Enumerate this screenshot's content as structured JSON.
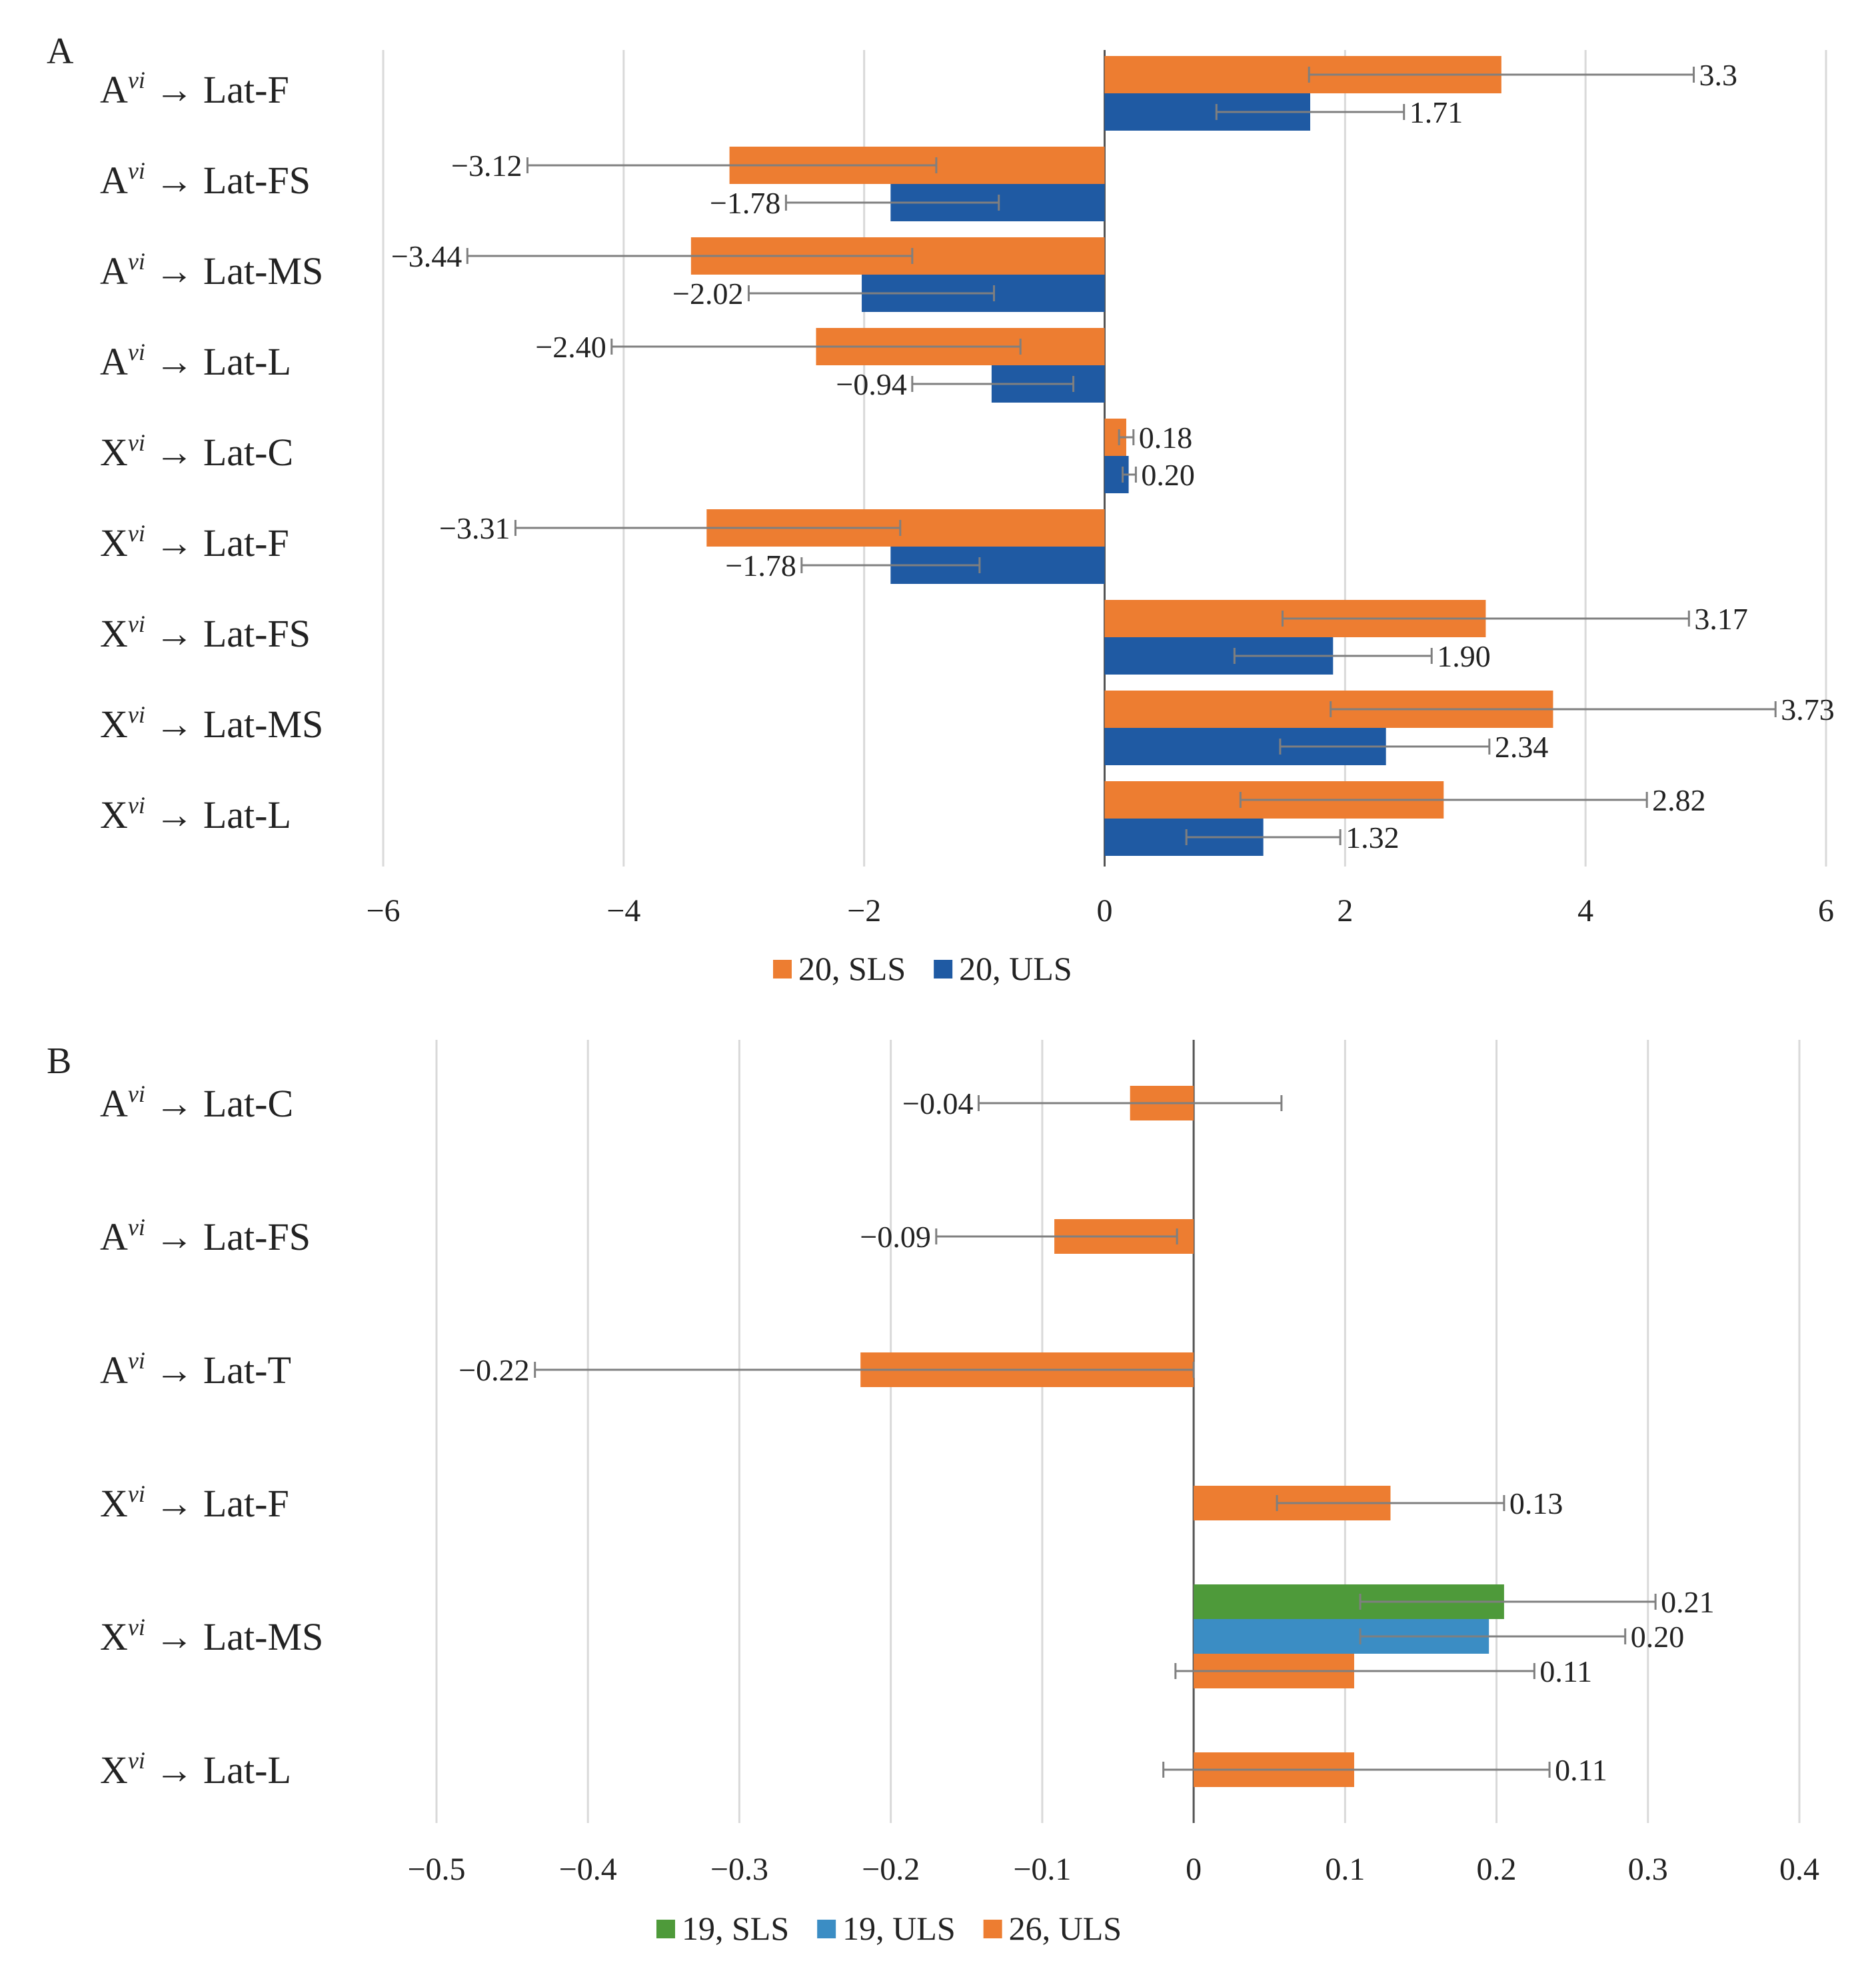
{
  "colors": {
    "sls20": "#ED7D31",
    "uls20": "#1F5AA3",
    "sls19": "#4E9A3A",
    "uls19": "#3B8DC4",
    "uls26": "#ED7D31",
    "grid": "#D9D9D9",
    "axis": "#555555",
    "errorbar": "#7F7F7F"
  },
  "chart_data": [
    {
      "panel": "A",
      "type": "bar",
      "orientation": "horizontal",
      "categories": [
        {
          "base": "A",
          "sup": "vi",
          "arrow": "→",
          "target": "Lat-F"
        },
        {
          "base": "A",
          "sup": "vi",
          "arrow": "→",
          "target": "Lat-FS"
        },
        {
          "base": "A",
          "sup": "vi",
          "arrow": "→",
          "target": "Lat-MS"
        },
        {
          "base": "A",
          "sup": "vi",
          "arrow": "→",
          "target": "Lat-L"
        },
        {
          "base": "X",
          "sup": "vi",
          "arrow": "→",
          "target": "Lat-C"
        },
        {
          "base": "X",
          "sup": "vi",
          "arrow": "→",
          "target": "Lat-F"
        },
        {
          "base": "X",
          "sup": "vi",
          "arrow": "→",
          "target": "Lat-FS"
        },
        {
          "base": "X",
          "sup": "vi",
          "arrow": "→",
          "target": "Lat-MS"
        },
        {
          "base": "X",
          "sup": "vi",
          "arrow": "→",
          "target": "Lat-L"
        }
      ],
      "series": [
        {
          "name": "20, SLS",
          "color_key": "sls20",
          "values": [
            3.3,
            -3.12,
            -3.44,
            -2.4,
            0.18,
            -3.31,
            3.17,
            3.73,
            2.82
          ],
          "labels": [
            "3.3",
            "−3.12",
            "−3.44",
            "−2.40",
            "0.18",
            "−3.31",
            "3.17",
            "3.73",
            "2.82"
          ],
          "err_low": [
            1.7,
            -1.4,
            -1.6,
            -0.7,
            0.12,
            -1.7,
            1.48,
            1.88,
            1.13
          ],
          "err_high": [
            4.9,
            -4.8,
            -5.3,
            -4.1,
            0.24,
            -4.9,
            4.86,
            5.58,
            4.51
          ]
        },
        {
          "name": "20, ULS",
          "color_key": "uls20",
          "values": [
            1.71,
            -1.78,
            -2.02,
            -0.94,
            0.2,
            -1.78,
            1.9,
            2.34,
            1.32
          ],
          "labels": [
            "1.71",
            "−1.78",
            "−2.02",
            "−0.94",
            "0.20",
            "−1.78",
            "1.90",
            "2.34",
            "1.32"
          ],
          "err_low": [
            0.93,
            -0.88,
            -0.92,
            -0.26,
            0.15,
            -1.04,
            1.08,
            1.46,
            0.68
          ],
          "err_high": [
            2.49,
            -2.65,
            -2.96,
            -1.6,
            0.26,
            -2.52,
            2.72,
            3.2,
            1.96
          ]
        }
      ],
      "xlim": [
        -6,
        6
      ],
      "xticks": [
        -6,
        -4,
        -2,
        0,
        2,
        4,
        6
      ],
      "xtick_labels": [
        "−6",
        "−4",
        "−2",
        "0",
        "2",
        "4",
        "6"
      ],
      "legend": [
        "20, SLS",
        "20, ULS"
      ],
      "legend_position": "bottom",
      "grid": true
    },
    {
      "panel": "B",
      "type": "bar",
      "orientation": "horizontal",
      "categories": [
        {
          "base": "A",
          "sup": "vi",
          "arrow": "→",
          "target": "Lat-C"
        },
        {
          "base": "A",
          "sup": "vi",
          "arrow": "→",
          "target": "Lat-FS"
        },
        {
          "base": "A",
          "sup": "vi",
          "arrow": "→",
          "target": "Lat-T"
        },
        {
          "base": "X",
          "sup": "vi",
          "arrow": "→",
          "target": "Lat-F"
        },
        {
          "base": "X",
          "sup": "vi",
          "arrow": "→",
          "target": "Lat-MS"
        },
        {
          "base": "X",
          "sup": "vi",
          "arrow": "→",
          "target": "Lat-L"
        }
      ],
      "series": [
        {
          "name": "19, SLS",
          "color_key": "sls19",
          "values": [
            null,
            null,
            null,
            null,
            0.205,
            null
          ],
          "labels": [
            null,
            null,
            null,
            null,
            "0.21",
            null
          ],
          "err_low": [
            null,
            null,
            null,
            null,
            0.11,
            null
          ],
          "err_high": [
            null,
            null,
            null,
            null,
            0.305,
            null
          ]
        },
        {
          "name": "19, ULS",
          "color_key": "uls19",
          "values": [
            null,
            null,
            null,
            null,
            0.195,
            null
          ],
          "labels": [
            null,
            null,
            null,
            null,
            "0.20",
            null
          ],
          "err_low": [
            null,
            null,
            null,
            null,
            0.11,
            null
          ],
          "err_high": [
            null,
            null,
            null,
            null,
            0.285,
            null
          ]
        },
        {
          "name": "26, ULS",
          "color_key": "uls26",
          "values": [
            -0.042,
            -0.092,
            -0.22,
            0.13,
            0.106,
            0.106
          ],
          "labels": [
            "−0.04",
            "−0.09",
            "−0.22",
            "0.13",
            "0.11",
            "0.11"
          ],
          "err_low": [
            0.058,
            -0.011,
            0.0,
            0.055,
            -0.012,
            -0.02
          ],
          "err_high": [
            -0.142,
            -0.17,
            -0.435,
            0.205,
            0.225,
            0.235
          ]
        }
      ],
      "xlim": [
        -0.5,
        0.4
      ],
      "xticks": [
        -0.5,
        -0.4,
        -0.3,
        -0.2,
        -0.1,
        0,
        0.1,
        0.2,
        0.3,
        0.4
      ],
      "xtick_labels": [
        "−0.5",
        "−0.4",
        "−0.3",
        "−0.2",
        "−0.1",
        "0",
        "0.1",
        "0.2",
        "0.3",
        "0.4"
      ],
      "legend": [
        "19, SLS",
        "19, ULS",
        "26, ULS"
      ],
      "legend_position": "bottom",
      "grid": true
    }
  ]
}
